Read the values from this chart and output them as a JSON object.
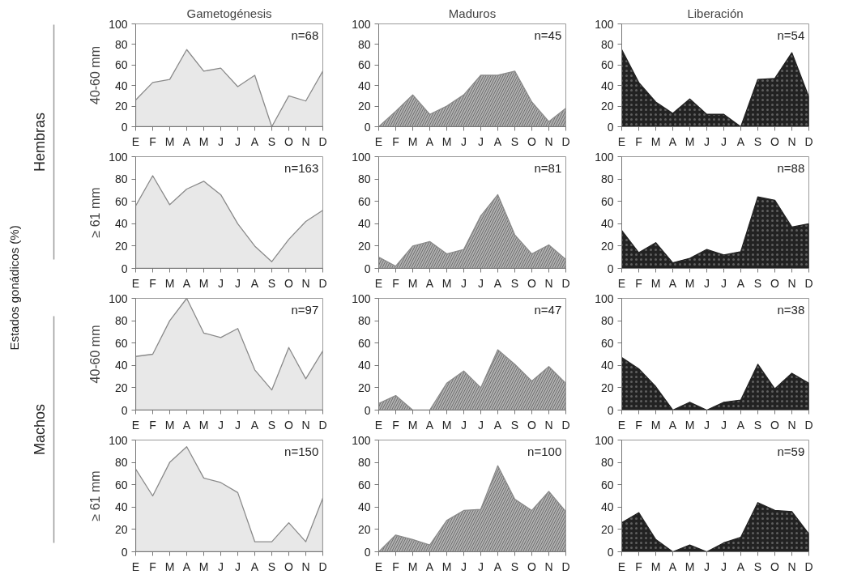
{
  "chart_data": [
    {
      "type": "area",
      "title": "Gametogénesis",
      "ylabel": "40-60 mm",
      "categories": [
        "E",
        "F",
        "M",
        "A",
        "M",
        "J",
        "J",
        "A",
        "S",
        "O",
        "N",
        "D"
      ],
      "values": [
        26,
        43,
        46,
        75,
        54,
        57,
        39,
        50,
        0,
        30,
        25,
        54
      ],
      "color": "#e8e8e8",
      "ylim": [
        0,
        100
      ],
      "yticks": [
        0,
        20,
        40,
        60,
        80,
        100
      ],
      "annotations": [
        "n=68",
        "Hembras",
        "Estados gonádicos (%)"
      ]
    },
    {
      "type": "area",
      "title": "Maduros",
      "categories": [
        "E",
        "F",
        "M",
        "A",
        "M",
        "J",
        "J",
        "A",
        "S",
        "O",
        "N",
        "D"
      ],
      "values": [
        0,
        15,
        31,
        12,
        20,
        31,
        50,
        50,
        54,
        24,
        5,
        18
      ],
      "color": "#b0b0b0",
      "ylim": [
        0,
        100
      ],
      "yticks": [
        0,
        20,
        40,
        60,
        80,
        100
      ],
      "annotations": [
        "n=45"
      ]
    },
    {
      "type": "area",
      "title": "Liberación",
      "categories": [
        "E",
        "F",
        "M",
        "A",
        "M",
        "J",
        "J",
        "A",
        "S",
        "O",
        "N",
        "D"
      ],
      "values": [
        75,
        43,
        24,
        13,
        27,
        12,
        12,
        0,
        46,
        47,
        72,
        29
      ],
      "color": "#222222",
      "ylim": [
        0,
        100
      ],
      "yticks": [
        0,
        20,
        40,
        60,
        80,
        100
      ],
      "annotations": [
        "n=54"
      ]
    },
    {
      "type": "area",
      "ylabel": "≥ 61 mm",
      "categories": [
        "E",
        "F",
        "M",
        "A",
        "M",
        "J",
        "J",
        "A",
        "S",
        "O",
        "N",
        "D"
      ],
      "values": [
        56,
        83,
        57,
        71,
        78,
        66,
        40,
        20,
        6,
        26,
        42,
        52
      ],
      "color": "#e8e8e8",
      "ylim": [
        0,
        100
      ],
      "yticks": [
        0,
        20,
        40,
        60,
        80,
        100
      ],
      "annotations": [
        "n=163"
      ]
    },
    {
      "type": "area",
      "categories": [
        "E",
        "F",
        "M",
        "A",
        "M",
        "J",
        "J",
        "A",
        "S",
        "O",
        "N",
        "D"
      ],
      "values": [
        10,
        2,
        20,
        24,
        13,
        17,
        47,
        66,
        30,
        13,
        21,
        8
      ],
      "color": "#b0b0b0",
      "ylim": [
        0,
        100
      ],
      "yticks": [
        0,
        20,
        40,
        60,
        80,
        100
      ],
      "annotations": [
        "n=81"
      ]
    },
    {
      "type": "area",
      "categories": [
        "E",
        "F",
        "M",
        "A",
        "M",
        "J",
        "J",
        "A",
        "S",
        "O",
        "N",
        "D"
      ],
      "values": [
        34,
        14,
        23,
        5,
        9,
        17,
        12,
        15,
        64,
        61,
        37,
        40
      ],
      "color": "#222222",
      "ylim": [
        0,
        100
      ],
      "yticks": [
        0,
        20,
        40,
        60,
        80,
        100
      ],
      "annotations": [
        "n=88"
      ]
    },
    {
      "type": "area",
      "ylabel": "40-60 mm",
      "categories": [
        "E",
        "F",
        "M",
        "A",
        "M",
        "J",
        "J",
        "A",
        "S",
        "O",
        "N",
        "D"
      ],
      "values": [
        48,
        50,
        80,
        100,
        69,
        65,
        73,
        36,
        18,
        56,
        28,
        53
      ],
      "color": "#e8e8e8",
      "ylim": [
        0,
        100
      ],
      "yticks": [
        0,
        20,
        40,
        60,
        80,
        100
      ],
      "annotations": [
        "n=97",
        "Machos"
      ]
    },
    {
      "type": "area",
      "categories": [
        "E",
        "F",
        "M",
        "A",
        "M",
        "J",
        "J",
        "A",
        "S",
        "O",
        "N",
        "D"
      ],
      "values": [
        6,
        13,
        0,
        0,
        24,
        35,
        20,
        54,
        41,
        26,
        39,
        24
      ],
      "color": "#b0b0b0",
      "ylim": [
        0,
        100
      ],
      "yticks": [
        0,
        20,
        40,
        60,
        80,
        100
      ],
      "annotations": [
        "n=47"
      ]
    },
    {
      "type": "area",
      "categories": [
        "E",
        "F",
        "M",
        "A",
        "M",
        "J",
        "J",
        "A",
        "S",
        "O",
        "N",
        "D"
      ],
      "values": [
        47,
        37,
        21,
        0,
        7,
        0,
        7,
        9,
        41,
        19,
        33,
        24
      ],
      "color": "#222222",
      "ylim": [
        0,
        100
      ],
      "yticks": [
        0,
        20,
        40,
        60,
        80,
        100
      ],
      "annotations": [
        "n=38"
      ]
    },
    {
      "type": "area",
      "ylabel": "≥ 61 mm",
      "categories": [
        "E",
        "F",
        "M",
        "A",
        "M",
        "J",
        "J",
        "A",
        "S",
        "O",
        "N",
        "D"
      ],
      "values": [
        74,
        50,
        80,
        94,
        66,
        62,
        53,
        9,
        9,
        26,
        9,
        48
      ],
      "color": "#e8e8e8",
      "ylim": [
        0,
        100
      ],
      "yticks": [
        0,
        20,
        40,
        60,
        80,
        100
      ],
      "annotations": [
        "n=150"
      ]
    },
    {
      "type": "area",
      "categories": [
        "E",
        "F",
        "M",
        "A",
        "M",
        "J",
        "J",
        "A",
        "S",
        "O",
        "N",
        "D"
      ],
      "values": [
        0,
        15,
        11,
        6,
        28,
        37,
        38,
        77,
        47,
        37,
        54,
        36
      ],
      "color": "#b0b0b0",
      "ylim": [
        0,
        100
      ],
      "yticks": [
        0,
        20,
        40,
        60,
        80,
        100
      ],
      "annotations": [
        "n=100"
      ]
    },
    {
      "type": "area",
      "categories": [
        "E",
        "F",
        "M",
        "A",
        "M",
        "J",
        "J",
        "A",
        "S",
        "O",
        "N",
        "D"
      ],
      "values": [
        26,
        35,
        11,
        0,
        6,
        0,
        8,
        13,
        44,
        37,
        36,
        16
      ],
      "color": "#222222",
      "ylim": [
        0,
        100
      ],
      "yticks": [
        0,
        20,
        40,
        60,
        80,
        100
      ],
      "annotations": [
        "n=59"
      ]
    }
  ]
}
